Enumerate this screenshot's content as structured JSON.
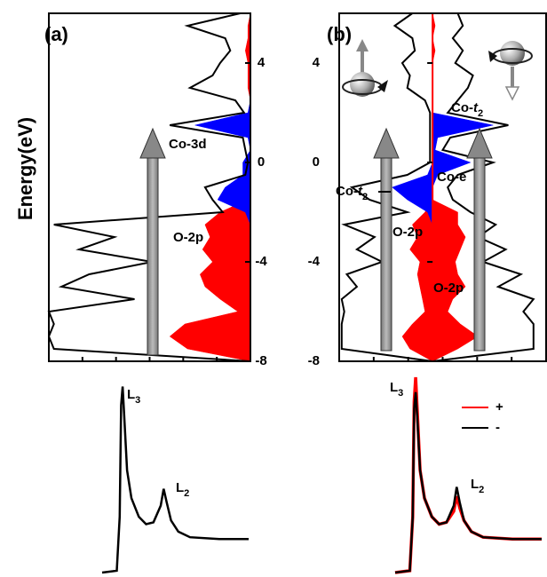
{
  "chart_data": [
    {
      "type": "dos",
      "panel_label": "(a)",
      "ylabel": "Energy(eV)",
      "y": [
        6,
        5.5,
        5,
        4.5,
        4,
        3.5,
        3,
        2.5,
        2,
        1.5,
        1,
        0.5,
        0,
        -0.5,
        -1,
        -1.5,
        -2,
        -2.5,
        -3,
        -3.5,
        -4,
        -4.5,
        -5,
        -5.5,
        -6,
        -6.5,
        -7,
        -7.5,
        -8
      ],
      "xlim": [
        8,
        0
      ],
      "ylim": [
        -8,
        6
      ],
      "yticks": [
        -8,
        -4,
        0,
        4
      ],
      "series": [
        {
          "color": "#ff0000",
          "fill": true,
          "values": [
            0,
            0.1,
            0.1,
            0.2,
            0.1,
            0.1,
            0.1,
            0,
            0,
            0,
            0,
            0,
            0,
            0,
            0,
            0.1,
            1.2,
            1.8,
            1.6,
            1.9,
            1.5,
            2.0,
            1.8,
            1.2,
            0.5,
            2.6,
            3.2,
            2.5,
            0
          ]
        },
        {
          "color": "#0000ff",
          "fill": true,
          "values": [
            0,
            0,
            0,
            0,
            0,
            0,
            0,
            0,
            0.1,
            2.2,
            0.1,
            0,
            0.3,
            0.3,
            1.0,
            1.3,
            0.2,
            0,
            0,
            0,
            0,
            0,
            0,
            0,
            0,
            0,
            0,
            0,
            0
          ]
        },
        {
          "color": "#000000",
          "fill": false,
          "values": [
            0.4,
            2.5,
            1.0,
            0.8,
            1.2,
            1.5,
            2.4,
            0.6,
            0.25,
            3.2,
            0.3,
            0.2,
            0.1,
            0.2,
            1.8,
            1.5,
            1.1,
            7.8,
            5.4,
            6.8,
            3.9,
            6.4,
            7.5,
            4.6,
            8,
            7.8,
            8,
            7.8,
            0
          ]
        }
      ],
      "annotations": [
        {
          "text": "Co-3d"
        },
        {
          "text": "O-2p"
        }
      ]
    },
    {
      "type": "dos",
      "panel_label": "(b)",
      "y": [
        6,
        5.5,
        5,
        4.5,
        4,
        3.5,
        3,
        2.5,
        2,
        1.5,
        1,
        0.5,
        0,
        -0.5,
        -1,
        -1.5,
        -2,
        -2.5,
        -3,
        -3.5,
        -4,
        -4.5,
        -5,
        -5.5,
        -6,
        -6.5,
        -7,
        -7.5,
        -8
      ],
      "xlim": [
        -3.7,
        4.5
      ],
      "ylim": [
        -8,
        6
      ],
      "yticks": [
        -8,
        -4,
        0,
        4
      ],
      "series": [
        {
          "color": "#ff0000",
          "fill": true,
          "values": [
            0,
            0,
            0,
            0,
            0,
            0,
            0,
            0,
            0,
            0,
            0,
            0,
            0,
            0,
            0,
            0,
            -0.3,
            -0.8,
            -0.6,
            -0.9,
            -0.5,
            -0.6,
            -0.5,
            -0.4,
            -0.3,
            -0.8,
            -1.2,
            -0.9,
            0
          ]
        },
        {
          "color": "#ff0000",
          "fill": true,
          "values": [
            0,
            0.1,
            0,
            0.1,
            0,
            0,
            0,
            0,
            0,
            0,
            0,
            0,
            0,
            0,
            0,
            0,
            1.0,
            1.0,
            1.3,
            1.1,
            0.9,
            1.0,
            1.3,
            0.8,
            0.6,
            1.1,
            1.8,
            1.0,
            0
          ]
        },
        {
          "color": "#0000ff",
          "fill": true,
          "values": [
            0,
            0,
            0,
            0,
            0,
            0,
            0,
            0,
            0,
            0,
            0,
            0,
            0,
            -0.2,
            -1.6,
            -1.0,
            -0.2,
            0,
            0,
            0,
            0,
            0,
            0,
            0,
            0,
            0,
            0,
            0,
            0
          ]
        },
        {
          "color": "#0000ff",
          "fill": true,
          "values": [
            0,
            0,
            0,
            0,
            0,
            0,
            0,
            0,
            0,
            2.4,
            0.2,
            0.1,
            1.5,
            0.2,
            0,
            0,
            0,
            0,
            0,
            0,
            0,
            0,
            0,
            0,
            0,
            0,
            0,
            0,
            0
          ]
        },
        {
          "color": "#000000",
          "fill": false,
          "values": [
            -0.8,
            -1.5,
            -0.8,
            -0.7,
            -1.2,
            -0.9,
            -1.0,
            -0.3,
            -0.1,
            -0.1,
            -0.1,
            -0.1,
            -0.1,
            -1.0,
            -3.2,
            -2.5,
            -1.0,
            -3.5,
            -2.3,
            -3.0,
            -2.0,
            -3.4,
            -3.0,
            -3.6,
            -3.5,
            -3.6,
            -3.6,
            -3.6,
            0
          ]
        },
        {
          "color": "#000000",
          "fill": false,
          "values": [
            1.0,
            1.2,
            0.8,
            1.2,
            0.9,
            1.6,
            1.4,
            1.0,
            0.6,
            3.0,
            0.7,
            0.4,
            2.4,
            1.0,
            0.6,
            0.8,
            1.5,
            2.5,
            1.8,
            2.9,
            2.0,
            3.5,
            2.6,
            4.0,
            3.6,
            4.0,
            4.0,
            4.0,
            0
          ]
        }
      ],
      "annotations": [
        {
          "text": "Co-",
          "italic": "t",
          "sub": "2"
        },
        {
          "text": "Co-",
          "italic": "t",
          "sub": "2"
        },
        {
          "text": "Co-e"
        },
        {
          "text": "O-2p"
        },
        {
          "text": "O-2p"
        }
      ]
    },
    {
      "type": "line",
      "x": [
        0,
        10,
        12,
        13,
        14,
        15,
        17,
        20,
        25,
        30,
        35,
        40,
        42,
        44,
        47,
        52,
        60,
        80,
        100
      ],
      "xlim": [
        0,
        100
      ],
      "ylim": [
        0,
        1.05
      ],
      "series": [
        {
          "color": "#000000",
          "values": [
            0,
            0.01,
            0.3,
            0.9,
            1.0,
            0.85,
            0.55,
            0.4,
            0.3,
            0.26,
            0.27,
            0.36,
            0.45,
            0.38,
            0.28,
            0.22,
            0.19,
            0.18,
            0.18
          ]
        }
      ],
      "annotations": [
        {
          "text": "L",
          "sub": "3"
        },
        {
          "text": "L",
          "sub": "2"
        }
      ]
    },
    {
      "type": "line",
      "x": [
        0,
        10,
        12,
        13,
        14,
        15,
        17,
        20,
        25,
        30,
        35,
        40,
        42,
        44,
        47,
        52,
        60,
        80,
        100
      ],
      "xlim": [
        0,
        100
      ],
      "ylim": [
        0,
        1.05
      ],
      "series": [
        {
          "name": "+",
          "color": "#ff0000",
          "values": [
            0,
            0.01,
            0.3,
            0.92,
            1.05,
            0.88,
            0.55,
            0.4,
            0.3,
            0.26,
            0.27,
            0.33,
            0.41,
            0.35,
            0.28,
            0.22,
            0.19,
            0.18,
            0.18
          ]
        },
        {
          "name": "-",
          "color": "#000000",
          "values": [
            0,
            0.01,
            0.3,
            0.88,
            0.97,
            0.84,
            0.55,
            0.4,
            0.3,
            0.26,
            0.27,
            0.36,
            0.46,
            0.38,
            0.28,
            0.22,
            0.19,
            0.18,
            0.18
          ]
        }
      ],
      "annotations": [
        {
          "text": "L",
          "sub": "3"
        },
        {
          "text": "L",
          "sub": "2"
        }
      ]
    }
  ]
}
